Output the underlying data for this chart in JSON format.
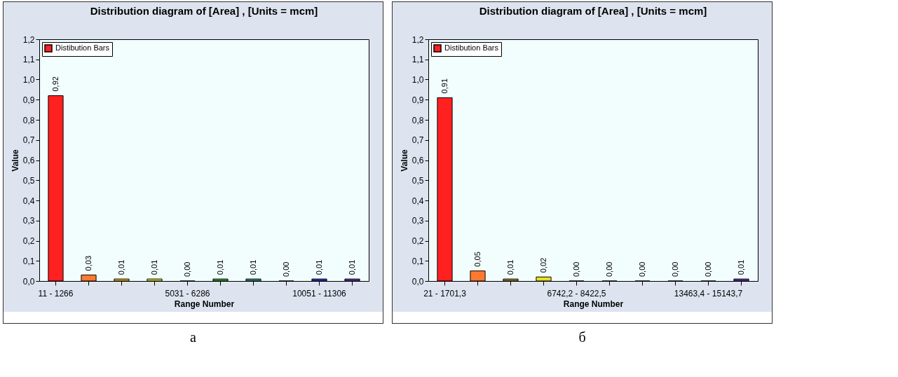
{
  "chart_data": [
    {
      "type": "bar",
      "title": "Distribution diagram of [Area] , [Units = mcm]",
      "xlabel": "Range Number",
      "ylabel": "Value",
      "categories": [
        "11 - 1266",
        null,
        null,
        null,
        "5031 - 6286",
        null,
        null,
        null,
        "10051 - 11306",
        null
      ],
      "series": [
        {
          "name": "Distibution Bars",
          "values": [
            0.92,
            0.03,
            0.01,
            0.01,
            0.0,
            0.01,
            0.01,
            0.0,
            0.01,
            0.01
          ]
        }
      ],
      "colors": [
        "#ff2020",
        "#ff7a30",
        "#f0b000",
        "#e8e020",
        "#a0d040",
        "#30a030",
        "#309080",
        "#3070c0",
        "#3030c0",
        "#6030a0"
      ],
      "value_labels": [
        "0,92",
        "0,03",
        "0,01",
        "0,01",
        "0,00",
        "0,01",
        "0,01",
        "0,00",
        "0,01",
        "0,01"
      ],
      "ylim": [
        0,
        1.2
      ],
      "yticks": [
        {
          "value": 0,
          "label": "0,0"
        },
        {
          "value": 0.1,
          "label": "0,1"
        },
        {
          "value": 0.2,
          "label": "0,2"
        },
        {
          "value": 0.3,
          "label": "0,3"
        },
        {
          "value": 0.4,
          "label": "0,4"
        },
        {
          "value": 0.5,
          "label": "0,5"
        },
        {
          "value": 0.6,
          "label": "0,6"
        },
        {
          "value": 0.7,
          "label": "0,7"
        },
        {
          "value": 0.8,
          "label": "0,8"
        },
        {
          "value": 0.9,
          "label": "0,9"
        },
        {
          "value": 1.0,
          "label": "1,0"
        },
        {
          "value": 1.1,
          "label": "1,1"
        },
        {
          "value": 1.2,
          "label": "1,2"
        }
      ],
      "grid": false,
      "legend": "top left",
      "annotations": [
        "а"
      ]
    },
    {
      "type": "bar",
      "title": "Distribution diagram of [Area] , [Units = mcm]",
      "xlabel": "Range Number",
      "ylabel": "Value",
      "categories": [
        "21 - 1701,3",
        null,
        null,
        null,
        "6742,2 - 8422,5",
        null,
        null,
        null,
        "13463,4 - 15143,7",
        null
      ],
      "series": [
        {
          "name": "Distibution Bars",
          "values": [
            0.91,
            0.05,
            0.01,
            0.02,
            0.0,
            0.0,
            0.0,
            0.0,
            0.0,
            0.01
          ]
        }
      ],
      "colors": [
        "#ff2020",
        "#ff7a30",
        "#a08020",
        "#e8e020",
        "#a0d040",
        "#30a030",
        "#309080",
        "#3070c0",
        "#3030c0",
        "#6030a0"
      ],
      "value_labels": [
        "0,91",
        "0,05",
        "0,01",
        "0,02",
        "0,00",
        "0,00",
        "0,00",
        "0,00",
        "0,00",
        "0,01"
      ],
      "ylim": [
        0,
        1.2
      ],
      "yticks": [
        {
          "value": 0,
          "label": "0,0"
        },
        {
          "value": 0.1,
          "label": "0,1"
        },
        {
          "value": 0.2,
          "label": "0,2"
        },
        {
          "value": 0.3,
          "label": "0,3"
        },
        {
          "value": 0.4,
          "label": "0,4"
        },
        {
          "value": 0.5,
          "label": "0,5"
        },
        {
          "value": 0.6,
          "label": "0,6"
        },
        {
          "value": 0.7,
          "label": "0,7"
        },
        {
          "value": 0.8,
          "label": "0,8"
        },
        {
          "value": 0.9,
          "label": "0,9"
        },
        {
          "value": 1.0,
          "label": "1,0"
        },
        {
          "value": 1.1,
          "label": "1,1"
        },
        {
          "value": 1.2,
          "label": "1,2"
        }
      ],
      "grid": false,
      "legend": "top left",
      "annotations": [
        "б"
      ]
    }
  ]
}
